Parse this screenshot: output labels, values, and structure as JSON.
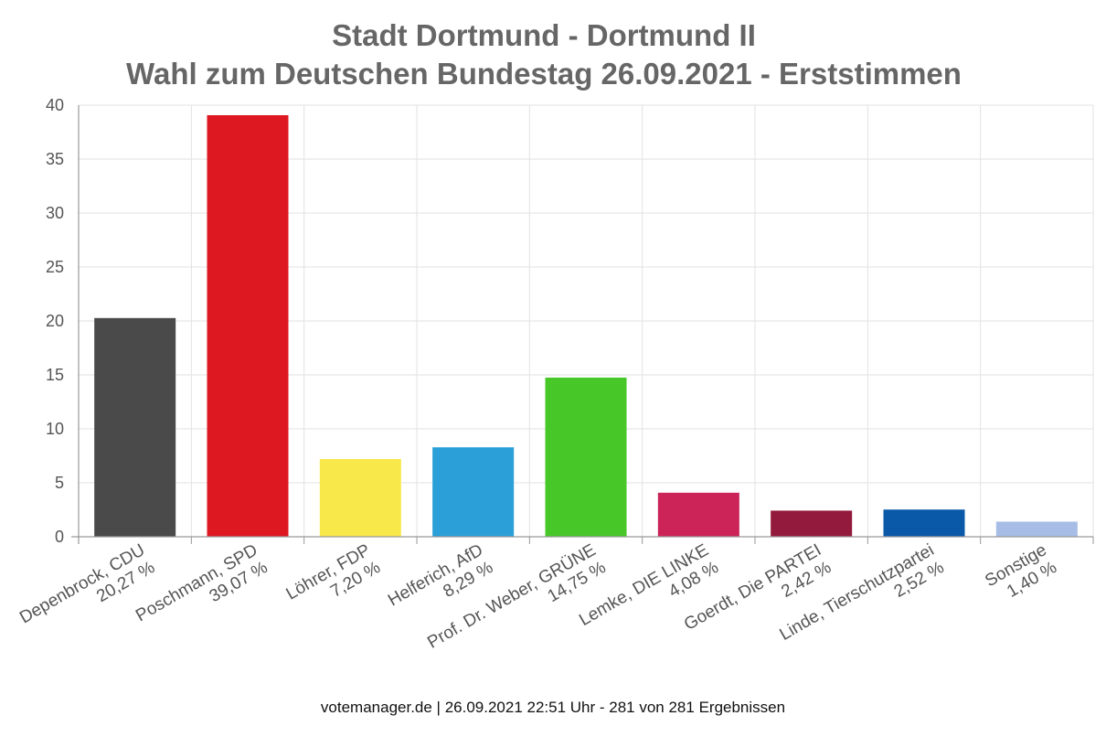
{
  "chart_data": {
    "type": "bar",
    "title_lines": [
      "Stadt Dortmund - Dortmund II",
      "Wahl zum Deutschen Bundestag 26.09.2021  - Erststimmen"
    ],
    "categories": [
      [
        "Depenbrock, CDU",
        "20,27 %"
      ],
      [
        "Poschmann, SPD",
        "39,07 %"
      ],
      [
        "Löhrer, FDP",
        "7,20 %"
      ],
      [
        "Helferich, AfD",
        "8,29 %"
      ],
      [
        "Prof. Dr. Weber, GRÜNE",
        "14,75 %"
      ],
      [
        "Lemke, DIE LINKE",
        "4,08 %"
      ],
      [
        "Goerdt, Die PARTEI",
        "2,42 %"
      ],
      [
        "Linde, Tierschutzpartei",
        "2,52 %"
      ],
      [
        "Sonstige",
        "1,40 %"
      ]
    ],
    "values": [
      20.27,
      39.07,
      7.2,
      8.29,
      14.75,
      4.08,
      2.42,
      2.52,
      1.4
    ],
    "colors": [
      "#4a4a4a",
      "#dd1820",
      "#f9e84a",
      "#2a9fd8",
      "#48c828",
      "#cc2358",
      "#931a3c",
      "#0a58a8",
      "#a7bde6"
    ],
    "ylim": [
      0,
      40
    ],
    "yticks": [
      0,
      5,
      10,
      15,
      20,
      25,
      30,
      35,
      40
    ],
    "grid": true,
    "legend": "none"
  },
  "footer": "votemanager.de | 26.09.2021 22:51 Uhr - 281 von 281 Ergebnissen"
}
